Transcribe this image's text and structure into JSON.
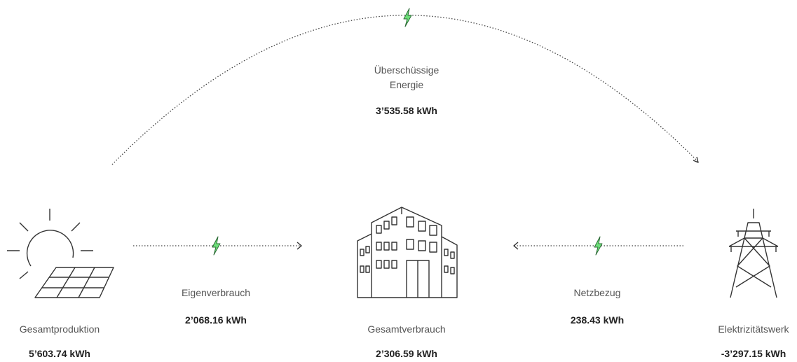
{
  "nodes": [
    {
      "label": "Gesamtproduktion",
      "value": "5’603.74 kWh"
    },
    {
      "label": "Gesamtverbrauch",
      "value": "2’306.59 kWh"
    },
    {
      "label": "Elektrizitätswerk",
      "value": "-3’297.15 kWh"
    }
  ],
  "flows": [
    {
      "label": "Überschüssige Energie",
      "value": "3’535.58 kWh"
    },
    {
      "label": "Eigenverbrauch",
      "value": "2’068.16 kWh"
    },
    {
      "label": "Netzbezug",
      "value": "238.43 kWh"
    }
  ]
}
